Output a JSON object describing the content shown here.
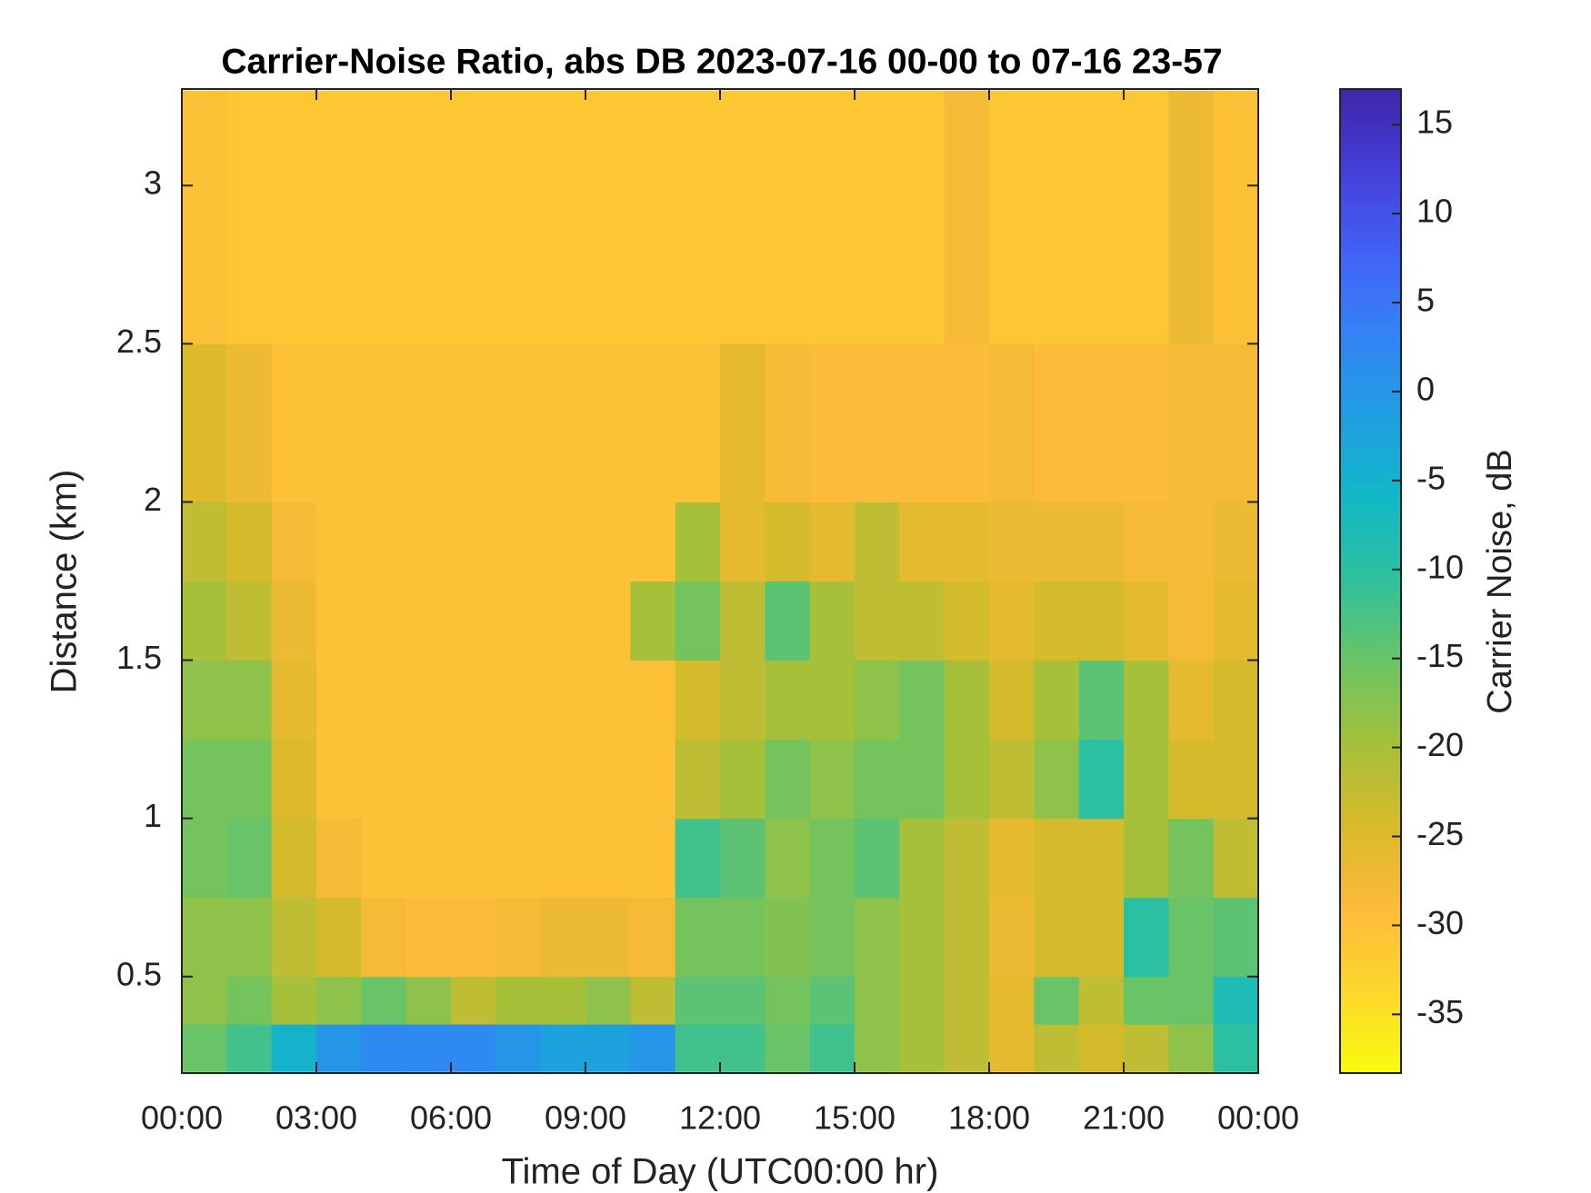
{
  "chart_data": {
    "type": "heatmap",
    "title": "Carrier-Noise Ratio, abs DB 2023-07-16 00-00 to 07-16 23-57",
    "xlabel": "Time of Day (UTC00:00 hr)",
    "ylabel": "Distance (km)",
    "colorbar_label": "Carrier Noise, dB",
    "x_bins": [
      0,
      1,
      2,
      3,
      4,
      5,
      6,
      7,
      8,
      9,
      10,
      11,
      12,
      13,
      14,
      15,
      16,
      17,
      18,
      19,
      20,
      21,
      22,
      23,
      24
    ],
    "y_bins": [
      0.2,
      0.35,
      0.5,
      0.75,
      1.0,
      1.25,
      1.5,
      1.75,
      2.0,
      2.5,
      3.3
    ],
    "z": [
      [
        -15,
        -12,
        -5,
        0,
        2,
        2,
        2,
        0,
        -2,
        -2,
        0,
        -12,
        -12,
        -15,
        -12,
        -18,
        -20,
        -22,
        -26,
        -22,
        -24,
        -22,
        -18,
        -10
      ],
      [
        -18,
        -16,
        -20,
        -18,
        -15,
        -18,
        -22,
        -20,
        -20,
        -18,
        -22,
        -14,
        -14,
        -16,
        -14,
        -18,
        -20,
        -22,
        -26,
        -15,
        -22,
        -15,
        -15,
        -8
      ],
      [
        -18,
        -18,
        -22,
        -24,
        -28,
        -29,
        -29,
        -28,
        -27,
        -27,
        -28,
        -16,
        -16,
        -17,
        -16,
        -18,
        -20,
        -22,
        -27,
        -24,
        -24,
        -10,
        -15,
        -14
      ],
      [
        -16,
        -15,
        -24,
        -28,
        -30,
        -30,
        -30,
        -30,
        -30,
        -30,
        -30,
        -12,
        -14,
        -18,
        -16,
        -14,
        -20,
        -22,
        -26,
        -24,
        -24,
        -20,
        -16,
        -22
      ],
      [
        -16,
        -16,
        -25,
        -30,
        -30,
        -30,
        -30,
        -30,
        -30,
        -30,
        -30,
        -22,
        -20,
        -16,
        -18,
        -16,
        -16,
        -20,
        -22,
        -18,
        -10,
        -20,
        -24,
        -24
      ],
      [
        -18,
        -18,
        -26,
        -30,
        -30,
        -30,
        -30,
        -30,
        -30,
        -30,
        -30,
        -24,
        -22,
        -20,
        -20,
        -18,
        -16,
        -20,
        -24,
        -20,
        -14,
        -20,
        -26,
        -24
      ],
      [
        -20,
        -22,
        -27,
        -30,
        -30,
        -30,
        -30,
        -30,
        -30,
        -30,
        -20,
        -16,
        -22,
        -14,
        -20,
        -22,
        -22,
        -24,
        -26,
        -24,
        -24,
        -26,
        -28,
        -26
      ],
      [
        -22,
        -24,
        -28,
        -30,
        -30,
        -30,
        -30,
        -30,
        -30,
        -30,
        -30,
        -20,
        -26,
        -24,
        -26,
        -22,
        -26,
        -26,
        -27,
        -27,
        -27,
        -28,
        -28,
        -27
      ],
      [
        -25,
        -27,
        -30,
        -30,
        -30,
        -30,
        -30,
        -30,
        -30,
        -30,
        -30,
        -30,
        -26,
        -28,
        -29,
        -29,
        -29,
        -29,
        -28,
        -29,
        -29,
        -29,
        -28,
        -28
      ],
      [
        -30,
        -31,
        -31,
        -31,
        -31,
        -31,
        -31,
        -31,
        -31,
        -31,
        -31,
        -31,
        -31,
        -31,
        -31,
        -31,
        -31,
        -28,
        -31,
        -31,
        -31,
        -31,
        -27,
        -30
      ]
    ],
    "xlim": [
      0,
      24
    ],
    "xticks": [
      {
        "value": 0,
        "label": "00:00"
      },
      {
        "value": 3,
        "label": "03:00"
      },
      {
        "value": 6,
        "label": "06:00"
      },
      {
        "value": 9,
        "label": "09:00"
      },
      {
        "value": 12,
        "label": "12:00"
      },
      {
        "value": 15,
        "label": "15:00"
      },
      {
        "value": 18,
        "label": "18:00"
      },
      {
        "value": 21,
        "label": "21:00"
      },
      {
        "value": 24,
        "label": "00:00"
      }
    ],
    "ylim": [
      0.195,
      3.305
    ],
    "yticks": [
      0.5,
      1,
      1.5,
      2,
      2.5,
      3
    ],
    "clim": [
      -38.3,
      17
    ],
    "cticks": [
      -35,
      -30,
      -25,
      -20,
      -15,
      -10,
      -5,
      0,
      5,
      10,
      15
    ],
    "colormap": [
      "#f9fb0e",
      "#fcd72c",
      "#fdbb3a",
      "#d9ba2a",
      "#a6c03a",
      "#6cc464",
      "#2fc19c",
      "#12b8c6",
      "#1e9fe0",
      "#3483f5",
      "#4262f5",
      "#453fd8",
      "#3e26a8"
    ]
  }
}
